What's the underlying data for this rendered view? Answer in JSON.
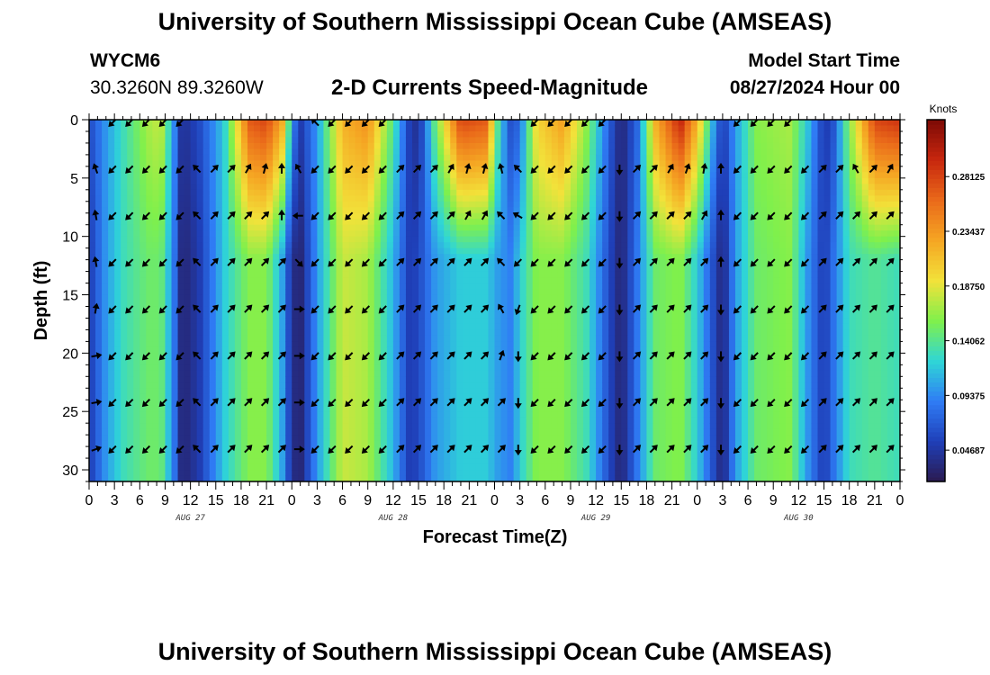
{
  "header": {
    "title": "University of Southern Mississippi Ocean Cube (AMSEAS)",
    "station": "WYCM6",
    "coords": "30.3260N  89.3260W",
    "subtitle": "2-D Currents Speed-Magnitude",
    "model_label": "Model Start Time",
    "model_time": "08/27/2024 Hour 00"
  },
  "footer": {
    "title": "University of Southern Mississippi Ocean Cube (AMSEAS)"
  },
  "colors": [
    "#2b1a4f",
    "#1f3fb8",
    "#2f7cf5",
    "#2fd6d6",
    "#7ff04c",
    "#f2e23a",
    "#f5a623",
    "#ea6a1a",
    "#c8270e",
    "#7d0a05"
  ],
  "chart_data": {
    "type": "heatmap",
    "title": "2-D Currents Speed-Magnitude",
    "xlabel": "Forecast Time(Z)",
    "ylabel": "Depth (ft)",
    "xlim": [
      0,
      96
    ],
    "ylim": [
      31,
      0
    ],
    "x_ticks": [
      {
        "hour": 0,
        "label": "0"
      },
      {
        "hour": 3,
        "label": "3"
      },
      {
        "hour": 6,
        "label": "6"
      },
      {
        "hour": 9,
        "label": "9"
      },
      {
        "hour": 12,
        "label": "12"
      },
      {
        "hour": 15,
        "label": "15"
      },
      {
        "hour": 18,
        "label": "18"
      },
      {
        "hour": 21,
        "label": "21"
      },
      {
        "hour": 24,
        "label": "0"
      },
      {
        "hour": 27,
        "label": "3"
      },
      {
        "hour": 30,
        "label": "6"
      },
      {
        "hour": 33,
        "label": "9"
      },
      {
        "hour": 36,
        "label": "12"
      },
      {
        "hour": 39,
        "label": "15"
      },
      {
        "hour": 42,
        "label": "18"
      },
      {
        "hour": 45,
        "label": "21"
      },
      {
        "hour": 48,
        "label": "0"
      },
      {
        "hour": 51,
        "label": "3"
      },
      {
        "hour": 54,
        "label": "6"
      },
      {
        "hour": 57,
        "label": "9"
      },
      {
        "hour": 60,
        "label": "12"
      },
      {
        "hour": 63,
        "label": "15"
      },
      {
        "hour": 66,
        "label": "18"
      },
      {
        "hour": 69,
        "label": "21"
      },
      {
        "hour": 72,
        "label": "0"
      },
      {
        "hour": 75,
        "label": "3"
      },
      {
        "hour": 78,
        "label": "6"
      },
      {
        "hour": 81,
        "label": "9"
      },
      {
        "hour": 84,
        "label": "12"
      },
      {
        "hour": 87,
        "label": "15"
      },
      {
        "hour": 90,
        "label": "18"
      },
      {
        "hour": 93,
        "label": "21"
      },
      {
        "hour": 96,
        "label": "0"
      }
    ],
    "day_labels": [
      {
        "hour": 12,
        "label": "AUG 27"
      },
      {
        "hour": 36,
        "label": "AUG 28"
      },
      {
        "hour": 60,
        "label": "AUG 29"
      },
      {
        "hour": 84,
        "label": "AUG 30"
      }
    ],
    "y_ticks": [
      0,
      5,
      10,
      15,
      20,
      25,
      30
    ],
    "colorbar": {
      "label": "Knots",
      "range": [
        0.02,
        0.33
      ],
      "ticks": [
        "0.28125",
        "0.23437",
        "0.18750",
        "0.14062",
        "0.09375",
        "0.04687"
      ],
      "tick_values": [
        0.28125,
        0.234375,
        0.1875,
        0.140625,
        0.09375,
        0.046875
      ]
    },
    "speed_profile": [
      {
        "hour": 0,
        "surface": 0.06,
        "bottom": 0.05
      },
      {
        "hour": 2,
        "surface": 0.1,
        "bottom": 0.1
      },
      {
        "hour": 4,
        "surface": 0.13,
        "bottom": 0.13
      },
      {
        "hour": 7,
        "surface": 0.17,
        "bottom": 0.15
      },
      {
        "hour": 8.5,
        "surface": 0.18,
        "bottom": 0.15
      },
      {
        "hour": 10,
        "surface": 0.1,
        "bottom": 0.09
      },
      {
        "hour": 11,
        "surface": 0.04,
        "bottom": 0.03
      },
      {
        "hour": 13,
        "surface": 0.06,
        "bottom": 0.05
      },
      {
        "hour": 16,
        "surface": 0.12,
        "bottom": 0.12
      },
      {
        "hour": 19,
        "surface": 0.27,
        "bottom": 0.16
      },
      {
        "hour": 21,
        "surface": 0.28,
        "bottom": 0.16
      },
      {
        "hour": 23,
        "surface": 0.22,
        "bottom": 0.1
      },
      {
        "hour": 24,
        "surface": 0.1,
        "bottom": 0.04
      },
      {
        "hour": 25,
        "surface": 0.05,
        "bottom": 0.03
      },
      {
        "hour": 27,
        "surface": 0.1,
        "bottom": 0.1
      },
      {
        "hour": 30,
        "surface": 0.22,
        "bottom": 0.18
      },
      {
        "hour": 33,
        "surface": 0.24,
        "bottom": 0.17
      },
      {
        "hour": 36,
        "surface": 0.14,
        "bottom": 0.11
      },
      {
        "hour": 38,
        "surface": 0.05,
        "bottom": 0.05
      },
      {
        "hour": 39,
        "surface": 0.04,
        "bottom": 0.06
      },
      {
        "hour": 41,
        "surface": 0.15,
        "bottom": 0.1
      },
      {
        "hour": 44,
        "surface": 0.28,
        "bottom": 0.12
      },
      {
        "hour": 47,
        "surface": 0.27,
        "bottom": 0.12
      },
      {
        "hour": 48.5,
        "surface": 0.13,
        "bottom": 0.1
      },
      {
        "hour": 50,
        "surface": 0.06,
        "bottom": 0.09
      },
      {
        "hour": 51,
        "surface": 0.08,
        "bottom": 0.12
      },
      {
        "hour": 53,
        "surface": 0.2,
        "bottom": 0.16
      },
      {
        "hour": 56,
        "surface": 0.23,
        "bottom": 0.16
      },
      {
        "hour": 59,
        "surface": 0.16,
        "bottom": 0.13
      },
      {
        "hour": 62,
        "surface": 0.06,
        "bottom": 0.05
      },
      {
        "hour": 63,
        "surface": 0.03,
        "bottom": 0.03
      },
      {
        "hour": 65,
        "surface": 0.08,
        "bottom": 0.09
      },
      {
        "hour": 67,
        "surface": 0.22,
        "bottom": 0.15
      },
      {
        "hour": 70,
        "surface": 0.3,
        "bottom": 0.16
      },
      {
        "hour": 72,
        "surface": 0.22,
        "bottom": 0.12
      },
      {
        "hour": 74,
        "surface": 0.1,
        "bottom": 0.06
      },
      {
        "hour": 75,
        "surface": 0.05,
        "bottom": 0.03
      },
      {
        "hour": 76.5,
        "surface": 0.1,
        "bottom": 0.1
      },
      {
        "hour": 79,
        "surface": 0.16,
        "bottom": 0.15
      },
      {
        "hour": 83,
        "surface": 0.17,
        "bottom": 0.16
      },
      {
        "hour": 85,
        "surface": 0.12,
        "bottom": 0.1
      },
      {
        "hour": 87,
        "surface": 0.05,
        "bottom": 0.05
      },
      {
        "hour": 88,
        "surface": 0.06,
        "bottom": 0.08
      },
      {
        "hour": 90,
        "surface": 0.16,
        "bottom": 0.13
      },
      {
        "hour": 93,
        "surface": 0.28,
        "bottom": 0.14
      },
      {
        "hour": 96,
        "surface": 0.29,
        "bottom": 0.13
      }
    ],
    "arrow_depths": [
      0,
      4,
      8,
      12,
      16,
      20,
      24,
      28
    ],
    "arrow_columns": [
      {
        "hour": 0,
        "dirs": [
          null,
          340,
          350,
          350,
          10,
          80,
          80,
          70
        ]
      },
      {
        "hour": 2,
        "dirs": [
          225,
          225,
          225,
          225,
          225,
          225,
          225,
          225
        ]
      },
      {
        "hour": 4,
        "dirs": [
          225,
          225,
          225,
          225,
          225,
          225,
          225,
          225
        ]
      },
      {
        "hour": 6,
        "dirs": [
          225,
          225,
          225,
          225,
          225,
          225,
          225,
          225
        ]
      },
      {
        "hour": 8,
        "dirs": [
          225,
          225,
          225,
          225,
          225,
          225,
          225,
          225
        ]
      },
      {
        "hour": 10,
        "dirs": [
          225,
          225,
          225,
          225,
          225,
          225,
          225,
          225
        ]
      },
      {
        "hour": 12,
        "dirs": [
          null,
          315,
          315,
          315,
          315,
          315,
          315,
          315
        ]
      },
      {
        "hour": 14,
        "dirs": [
          null,
          45,
          45,
          45,
          45,
          45,
          45,
          45
        ]
      },
      {
        "hour": 16,
        "dirs": [
          null,
          45,
          45,
          45,
          45,
          45,
          45,
          45
        ]
      },
      {
        "hour": 18,
        "dirs": [
          null,
          30,
          45,
          45,
          45,
          45,
          45,
          45
        ]
      },
      {
        "hour": 20,
        "dirs": [
          null,
          15,
          45,
          45,
          45,
          45,
          45,
          45
        ]
      },
      {
        "hour": 22,
        "dirs": [
          null,
          0,
          0,
          45,
          45,
          45,
          45,
          45
        ]
      },
      {
        "hour": 24,
        "dirs": [
          null,
          330,
          270,
          135,
          90,
          90,
          90,
          90
        ]
      },
      {
        "hour": 26,
        "dirs": [
          315,
          225,
          225,
          225,
          225,
          225,
          225,
          225
        ]
      },
      {
        "hour": 28,
        "dirs": [
          225,
          225,
          225,
          225,
          225,
          225,
          225,
          225
        ]
      },
      {
        "hour": 30,
        "dirs": [
          225,
          225,
          225,
          225,
          225,
          225,
          225,
          225
        ]
      },
      {
        "hour": 32,
        "dirs": [
          225,
          225,
          225,
          225,
          225,
          225,
          225,
          225
        ]
      },
      {
        "hour": 34,
        "dirs": [
          225,
          225,
          225,
          225,
          225,
          225,
          225,
          225
        ]
      },
      {
        "hour": 36,
        "dirs": [
          null,
          45,
          45,
          45,
          45,
          45,
          45,
          45
        ]
      },
      {
        "hour": 38,
        "dirs": [
          null,
          45,
          45,
          45,
          45,
          45,
          45,
          45
        ]
      },
      {
        "hour": 40,
        "dirs": [
          null,
          45,
          45,
          45,
          45,
          45,
          45,
          45
        ]
      },
      {
        "hour": 42,
        "dirs": [
          null,
          30,
          45,
          45,
          45,
          45,
          45,
          45
        ]
      },
      {
        "hour": 44,
        "dirs": [
          null,
          15,
          30,
          45,
          45,
          45,
          45,
          45
        ]
      },
      {
        "hour": 46,
        "dirs": [
          null,
          15,
          30,
          45,
          45,
          45,
          45,
          45
        ]
      },
      {
        "hour": 48,
        "dirs": [
          null,
          345,
          315,
          315,
          330,
          20,
          45,
          45
        ]
      },
      {
        "hour": 50,
        "dirs": [
          null,
          315,
          300,
          225,
          200,
          180,
          180,
          180
        ]
      },
      {
        "hour": 52,
        "dirs": [
          225,
          225,
          225,
          225,
          225,
          225,
          225,
          225
        ]
      },
      {
        "hour": 54,
        "dirs": [
          225,
          225,
          225,
          225,
          225,
          225,
          225,
          225
        ]
      },
      {
        "hour": 56,
        "dirs": [
          225,
          225,
          225,
          225,
          225,
          225,
          225,
          225
        ]
      },
      {
        "hour": 58,
        "dirs": [
          225,
          225,
          225,
          225,
          225,
          225,
          225,
          225
        ]
      },
      {
        "hour": 60,
        "dirs": [
          225,
          225,
          225,
          225,
          225,
          225,
          225,
          225
        ]
      },
      {
        "hour": 62,
        "dirs": [
          null,
          180,
          180,
          180,
          180,
          180,
          180,
          180
        ]
      },
      {
        "hour": 64,
        "dirs": [
          null,
          45,
          45,
          45,
          45,
          45,
          45,
          45
        ]
      },
      {
        "hour": 66,
        "dirs": [
          null,
          45,
          45,
          45,
          45,
          45,
          45,
          45
        ]
      },
      {
        "hour": 68,
        "dirs": [
          null,
          30,
          45,
          45,
          45,
          45,
          45,
          45
        ]
      },
      {
        "hour": 70,
        "dirs": [
          null,
          20,
          45,
          45,
          45,
          45,
          45,
          45
        ]
      },
      {
        "hour": 72,
        "dirs": [
          null,
          10,
          30,
          45,
          45,
          45,
          45,
          45
        ]
      },
      {
        "hour": 74,
        "dirs": [
          null,
          0,
          0,
          0,
          180,
          180,
          180,
          180
        ]
      },
      {
        "hour": 76,
        "dirs": [
          225,
          225,
          225,
          225,
          225,
          225,
          225,
          225
        ]
      },
      {
        "hour": 78,
        "dirs": [
          225,
          225,
          225,
          225,
          225,
          225,
          225,
          225
        ]
      },
      {
        "hour": 80,
        "dirs": [
          225,
          225,
          225,
          225,
          225,
          225,
          225,
          225
        ]
      },
      {
        "hour": 82,
        "dirs": [
          225,
          225,
          225,
          225,
          225,
          225,
          225,
          225
        ]
      },
      {
        "hour": 84,
        "dirs": [
          null,
          225,
          225,
          225,
          225,
          225,
          225,
          225
        ]
      },
      {
        "hour": 86,
        "dirs": [
          null,
          45,
          45,
          45,
          45,
          45,
          45,
          45
        ]
      },
      {
        "hour": 88,
        "dirs": [
          null,
          45,
          45,
          45,
          45,
          45,
          45,
          45
        ]
      },
      {
        "hour": 90,
        "dirs": [
          null,
          330,
          45,
          45,
          45,
          45,
          45,
          45
        ]
      },
      {
        "hour": 92,
        "dirs": [
          null,
          45,
          45,
          45,
          45,
          45,
          45,
          45
        ]
      },
      {
        "hour": 94,
        "dirs": [
          null,
          30,
          45,
          45,
          45,
          45,
          45,
          45
        ]
      }
    ]
  }
}
